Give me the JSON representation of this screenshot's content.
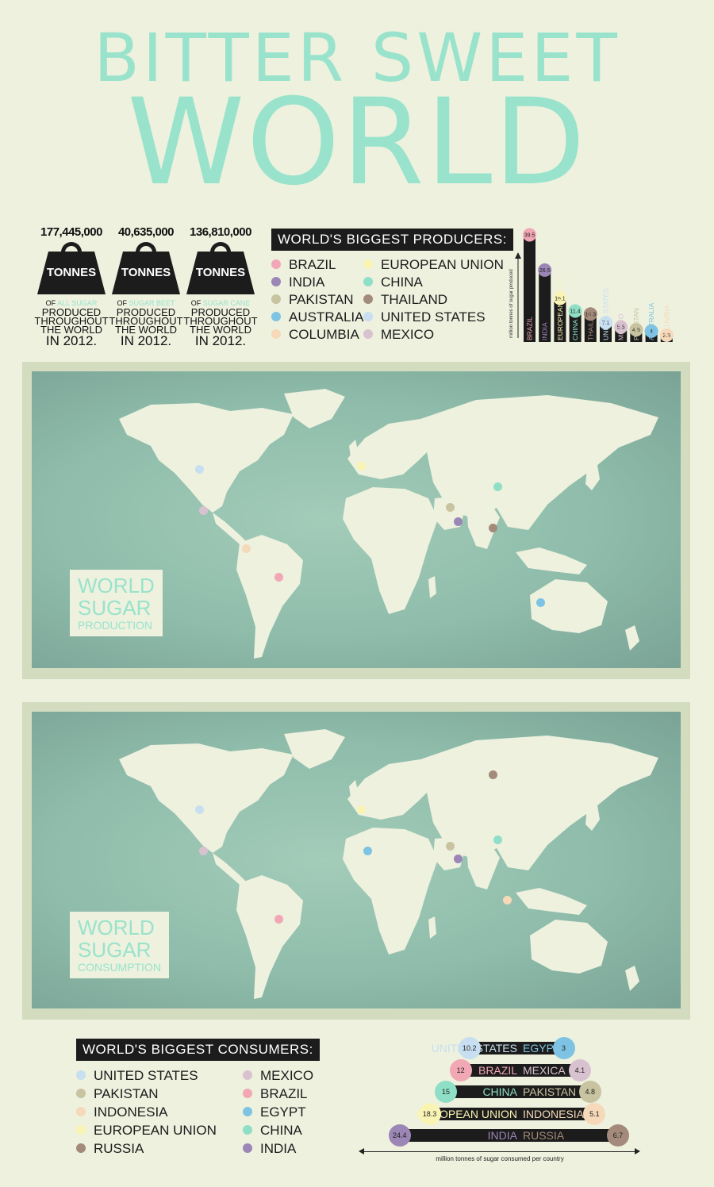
{
  "title_line1": "BITTER SWEET",
  "title_line2": "WORLD",
  "stats": [
    {
      "number": "177,445,000",
      "unit": "TONNES",
      "of": "OF",
      "highlight": "ALL SUGAR",
      "l1": "PRODUCED",
      "l2": "THROUGHOUT",
      "l3": "THE WORLD",
      "year": "IN 2012."
    },
    {
      "number": "40,635,000",
      "unit": "TONNES",
      "of": "OF",
      "highlight": "SUGAR BEET",
      "l1": "PRODUCED",
      "l2": "THROUGHOUT",
      "l3": "THE WORLD",
      "year": "IN 2012."
    },
    {
      "number": "136,810,000",
      "unit": "TONNES",
      "of": "OF",
      "highlight": "SUGAR CANE",
      "l1": "PRODUCED",
      "l2": "THROUGHOUT",
      "l3": "THE WORLD",
      "year": "IN 2012."
    }
  ],
  "producers_heading": "WORLD'S BIGGEST PRODUCERS:",
  "producers_legend": [
    {
      "name": "BRAZIL",
      "color": "#f2a7b4"
    },
    {
      "name": "INDIA",
      "color": "#9b86b6"
    },
    {
      "name": "PAKISTAN",
      "color": "#c8c3a0"
    },
    {
      "name": "AUSTRALIA",
      "color": "#7ec3e3"
    },
    {
      "name": "COLUMBIA",
      "color": "#f5d9b9"
    },
    {
      "name": "EUROPEAN UNION",
      "color": "#faf4b4"
    },
    {
      "name": "CHINA",
      "color": "#8fdfc6"
    },
    {
      "name": "THAILAND",
      "color": "#a48a7a"
    },
    {
      "name": "UNITED STATES",
      "color": "#c7dff0"
    },
    {
      "name": "MEXICO",
      "color": "#d9c2cf"
    }
  ],
  "chart_data": [
    {
      "type": "bar",
      "ylabel": "million tonnes of sugar produced",
      "categories": [
        "BRAZIL",
        "INDIA",
        "EUROPEAN UNION",
        "CHINA",
        "THAILAND",
        "UNITED STATES",
        "MEXICO",
        "PAKISTAN",
        "AUSTRALIA",
        "COLUMBIA"
      ],
      "values": [
        39.5,
        26.5,
        16.1,
        11.4,
        10.3,
        7.1,
        5.5,
        4.5,
        4,
        2.5
      ],
      "value_labels": [
        "39.5",
        "26.5",
        "16.1",
        "11.4",
        "10.3",
        "7.1",
        "5.5",
        "4.5",
        "4",
        "2.5"
      ],
      "colors": [
        "#f2a7b4",
        "#9b86b6",
        "#faf4b4",
        "#8fdfc6",
        "#a48a7a",
        "#c7dff0",
        "#d9c2cf",
        "#c8c3a0",
        "#7ec3e3",
        "#f5d9b9"
      ]
    },
    {
      "type": "bar",
      "xlabel": "million tonnes of sugar consumed per country",
      "rows": [
        {
          "left": {
            "name": "UNITED STATES",
            "value": 10.2,
            "label": "10.2",
            "color": "#c7dff0"
          },
          "right": {
            "name": "EGYPT",
            "value": 3,
            "label": "3",
            "color": "#7ec3e3"
          }
        },
        {
          "left": {
            "name": "BRAZIL",
            "value": 12,
            "label": "12",
            "color": "#f2a7b4"
          },
          "right": {
            "name": "MEXICA",
            "value": 4.1,
            "label": "4.1",
            "color": "#d9c2cf"
          }
        },
        {
          "left": {
            "name": "CHINA",
            "value": 15,
            "label": "15",
            "color": "#8fdfc6"
          },
          "right": {
            "name": "PAKISTAN",
            "value": 4.8,
            "label": "4.8",
            "color": "#c8c3a0"
          }
        },
        {
          "left": {
            "name": "EUROPEAN UNION",
            "value": 18.3,
            "label": "18.3",
            "color": "#faf4b4"
          },
          "right": {
            "name": "INDONESIA",
            "value": 5.1,
            "label": "5.1",
            "color": "#f5d9b9"
          }
        },
        {
          "left": {
            "name": "INDIA",
            "value": 24.4,
            "label": "24.4",
            "color": "#9b86b6"
          },
          "right": {
            "name": "RUSSIA",
            "value": 6.7,
            "label": "6.7",
            "color": "#a48a7a"
          }
        }
      ]
    }
  ],
  "map_production": {
    "line1": "WORLD",
    "line2": "SUGAR",
    "line3": "PRODUCTION"
  },
  "map_consumption": {
    "line1": "WORLD",
    "line2": "SUGAR",
    "line3": "CONSUMPTION"
  },
  "consumers_heading": "WORLD'S BIGGEST CONSUMERS:",
  "consumers_legend": [
    {
      "name": "UNITED STATES",
      "color": "#c7dff0"
    },
    {
      "name": "PAKISTAN",
      "color": "#c8c3a0"
    },
    {
      "name": "INDONESIA",
      "color": "#f5d9b9"
    },
    {
      "name": "EUROPEAN UNION",
      "color": "#faf4b4"
    },
    {
      "name": "RUSSIA",
      "color": "#a48a7a"
    },
    {
      "name": "MEXICO",
      "color": "#d9c2cf"
    },
    {
      "name": "BRAZIL",
      "color": "#f2a7b4"
    },
    {
      "name": "EGYPT",
      "color": "#7ec3e3"
    },
    {
      "name": "CHINA",
      "color": "#8fdfc6"
    },
    {
      "name": "INDIA",
      "color": "#9b86b6"
    }
  ]
}
